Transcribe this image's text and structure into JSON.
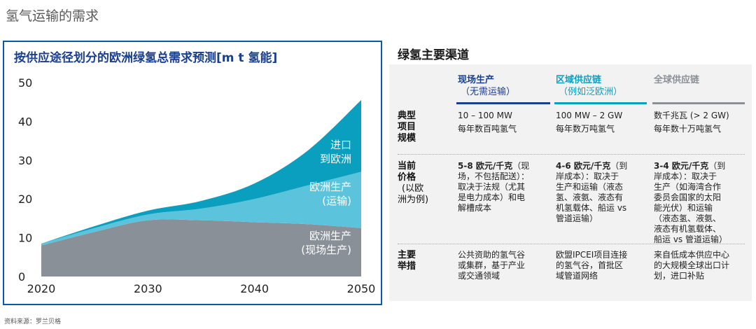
{
  "page_title": "氢气运输的需求",
  "source": "资料来源：罗兰贝格",
  "chart_data": {
    "type": "area",
    "title": "按供应途径划分的欧洲绿氢总需求预测[m t 氢能]",
    "x": [
      2020,
      2025,
      2030,
      2035,
      2040,
      2045,
      2050
    ],
    "series": [
      {
        "name": "欧洲生产(现场生产)",
        "name_lines": [
          "欧洲生产",
          "(现场生产)"
        ],
        "color": "#8a9098",
        "values": [
          8,
          11.5,
          14.5,
          14.5,
          14,
          13.5,
          12.5
        ]
      },
      {
        "name": "欧洲生产(运输)",
        "name_lines": [
          "欧洲生产",
          "(运输)"
        ],
        "color": "#5bc4dc",
        "values": [
          0.5,
          1,
          1.5,
          3,
          6,
          10,
          14.5
        ]
      },
      {
        "name": "进口到欧洲",
        "name_lines": [
          "进口",
          "到欧洲"
        ],
        "color": "#0b9fbf",
        "values": [
          0,
          0.5,
          1,
          2,
          4,
          9,
          18.5
        ]
      }
    ],
    "stacked": true,
    "ylim": [
      0,
      50
    ],
    "yticks": [
      0,
      10,
      20,
      30,
      40,
      50
    ],
    "xticks": [
      2020,
      2030,
      2040,
      2050
    ]
  },
  "table": {
    "title": "绿氢主要渠道",
    "columns": [
      {
        "title": "现场生产",
        "subtitle": "（无需运输）",
        "color": "#1a3f8f",
        "bar": "#1a3f8f"
      },
      {
        "title": "区域供应链",
        "subtitle": "（例如泛欧洲）",
        "color": "#0b9fbf",
        "bar": "#0b9fbf"
      },
      {
        "title": "全球供应链",
        "subtitle": "",
        "color": "#8a9098",
        "bar": "#8a9098"
      }
    ],
    "rows": [
      {
        "header": [
          "典型",
          "项目",
          "规模"
        ],
        "cells": [
          [
            "10 – 100 MW",
            "每年数百吨氢气"
          ],
          [
            "100 MW – 2 GW",
            "每年数万吨氢气"
          ],
          [
            "数千兆瓦 (> 2 GW)",
            "每年数十万吨氢气"
          ]
        ]
      },
      {
        "header": [
          "当前",
          "价格"
        ],
        "header_sub": [
          "(以欧",
          "洲为例)"
        ],
        "cells": [
          [
            "5-8 欧元/千克",
            "（现",
            "场，不包括配送）：",
            "取决于法规（尤其",
            "是电力成本）和电",
            "解槽成本"
          ],
          [
            "4-6 欧元/千克",
            "（到",
            "岸成本）：取决于",
            "生产和运输（液态",
            "氢、液氨、液态有",
            "机氢载体、船运 vs",
            "管道运输）"
          ],
          [
            "3-4 欧元/千克",
            "（到",
            "岸成本）：取决于",
            "生产（如海湾合作",
            "委员会国家的太阳",
            "能光伏）和运输",
            "（液态氢、液氨、",
            "液态有机氢载体、",
            "船运 vs 管道运输）"
          ]
        ]
      },
      {
        "header": [
          "主要",
          "举措"
        ],
        "cells": [
          [
            "公共资助的氢气谷",
            "或集群，基于产业",
            "或交通领域"
          ],
          [
            "欧盟IPCEI项目连接",
            "的氢气谷，首批区",
            "域管道网络"
          ],
          [
            "来自低成本供应中心",
            "的大规模全球出口计",
            "划，进口补贴"
          ]
        ]
      }
    ]
  }
}
